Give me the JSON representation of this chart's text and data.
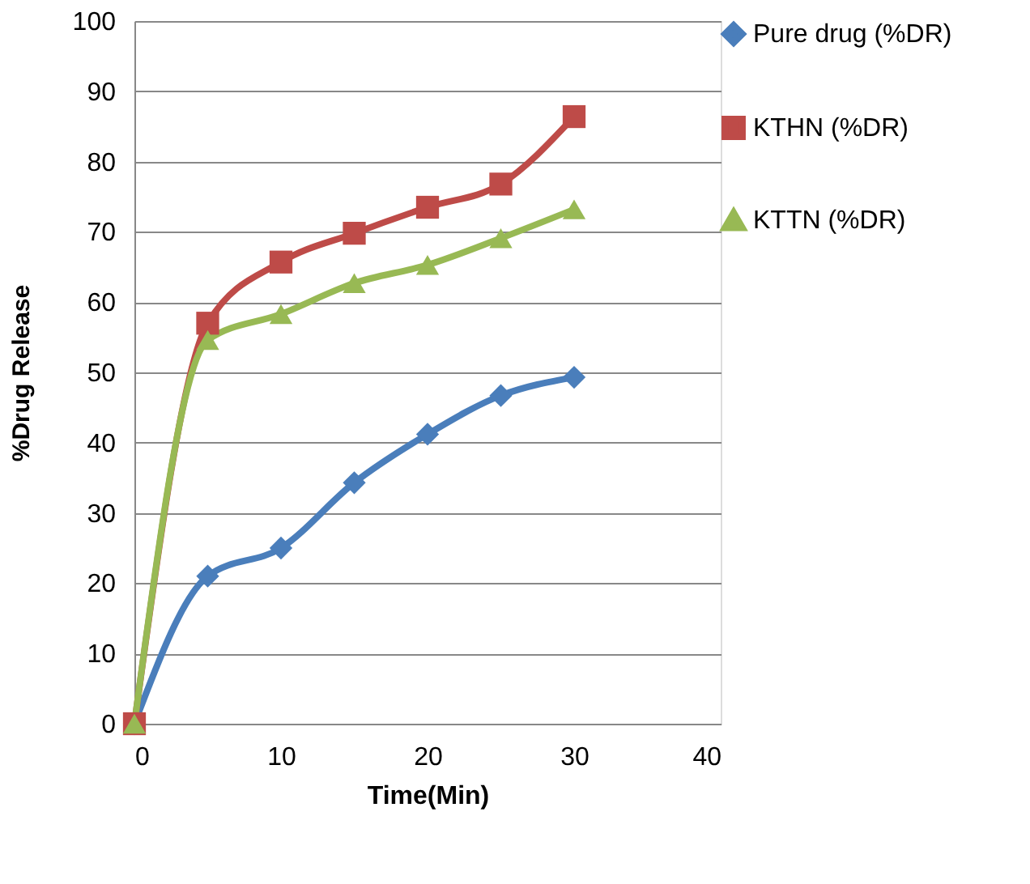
{
  "chart_data": {
    "type": "line",
    "xlabel": "Time(Min)",
    "ylabel": "%Drug Release",
    "x": [
      0,
      5,
      10,
      15,
      20,
      25,
      30
    ],
    "series": [
      {
        "name": "Pure drug (%DR)",
        "color": "#4a7ebb",
        "marker": "diamond",
        "values": [
          0,
          21,
          25,
          34.3,
          41.2,
          46.7,
          49.3
        ]
      },
      {
        "name": "KTHN (%DR)",
        "color": "#be4b48",
        "marker": "square",
        "values": [
          0,
          57,
          65.7,
          69.8,
          73.5,
          76.8,
          86.4
        ]
      },
      {
        "name": "KTTN (%DR)",
        "color": "#98b954",
        "marker": "triangle",
        "values": [
          0,
          54.6,
          58.3,
          62.7,
          65.3,
          69.1,
          73.2
        ]
      }
    ],
    "xlim": [
      0,
      40
    ],
    "xticks": [
      0,
      10,
      20,
      30,
      40
    ],
    "ylim": [
      0,
      100
    ],
    "yticks": [
      0,
      10,
      20,
      30,
      40,
      50,
      60,
      70,
      80,
      90,
      100
    ],
    "grid": "y",
    "legend": "right",
    "line_style": "solid"
  }
}
